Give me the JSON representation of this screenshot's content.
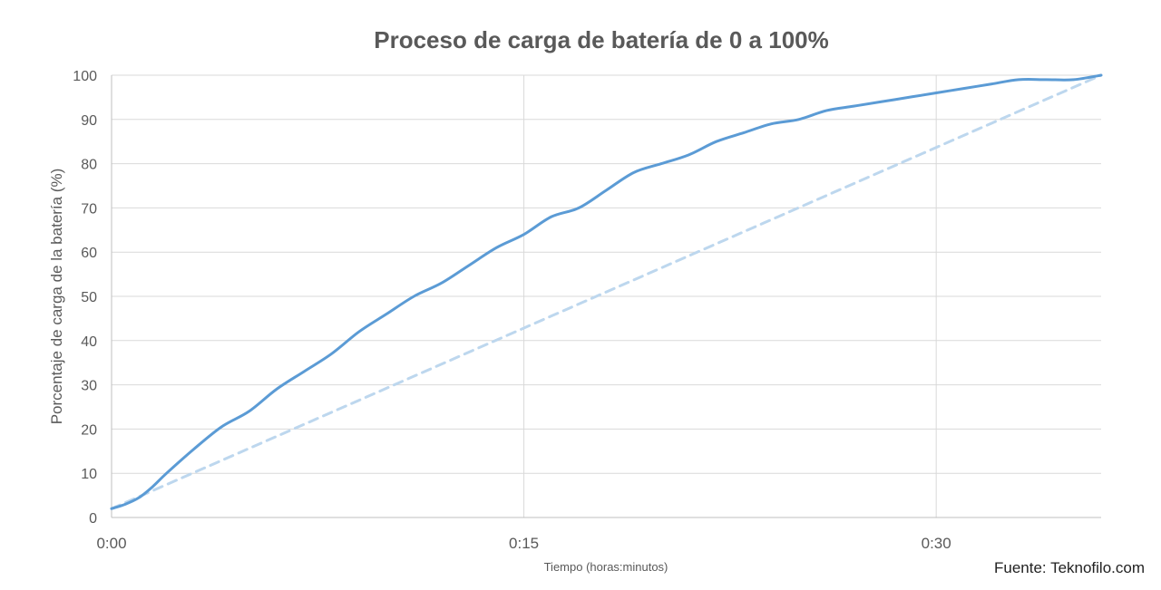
{
  "chart_data": {
    "type": "line",
    "title": "Proceso de carga de batería de 0 a 100%",
    "xlabel": "Tiempo (horas:minutos)",
    "ylabel": "Porcentaje de carga de la batería (%)",
    "xlim_minutes": [
      0,
      36
    ],
    "ylim": [
      0,
      100
    ],
    "x_ticks": [
      {
        "minute": 0,
        "label": "0:00"
      },
      {
        "minute": 15,
        "label": "0:15"
      },
      {
        "minute": 30,
        "label": "0:30"
      }
    ],
    "y_ticks": [
      0,
      10,
      20,
      30,
      40,
      50,
      60,
      70,
      80,
      90,
      100
    ],
    "grid": true,
    "legend": "none",
    "series": [
      {
        "style": "solid",
        "color": "#5b9bd5",
        "points": [
          [
            0,
            2
          ],
          [
            0.5,
            3
          ],
          [
            1,
            4.5
          ],
          [
            1.5,
            7
          ],
          [
            2,
            10
          ],
          [
            3,
            15.5
          ],
          [
            4,
            20.5
          ],
          [
            5,
            24
          ],
          [
            6,
            29
          ],
          [
            7,
            33
          ],
          [
            8,
            37
          ],
          [
            9,
            42
          ],
          [
            10,
            46
          ],
          [
            11,
            50
          ],
          [
            12,
            53
          ],
          [
            13,
            57
          ],
          [
            14,
            61
          ],
          [
            15,
            64
          ],
          [
            16,
            68
          ],
          [
            17,
            70
          ],
          [
            18,
            74
          ],
          [
            19,
            78
          ],
          [
            20,
            80
          ],
          [
            21,
            82
          ],
          [
            22,
            85
          ],
          [
            23,
            87
          ],
          [
            24,
            89
          ],
          [
            25,
            90
          ],
          [
            26,
            92
          ],
          [
            27,
            93
          ],
          [
            28,
            94
          ],
          [
            29,
            95
          ],
          [
            30,
            96
          ],
          [
            31,
            97
          ],
          [
            32,
            98
          ],
          [
            33,
            99
          ],
          [
            34,
            99
          ],
          [
            35,
            99
          ],
          [
            36,
            100
          ]
        ]
      },
      {
        "style": "dashed",
        "color": "#bdd7ee",
        "points": [
          [
            0,
            2
          ],
          [
            36,
            100
          ]
        ]
      }
    ],
    "annotation": "Fuente: Teknofilo.com"
  }
}
